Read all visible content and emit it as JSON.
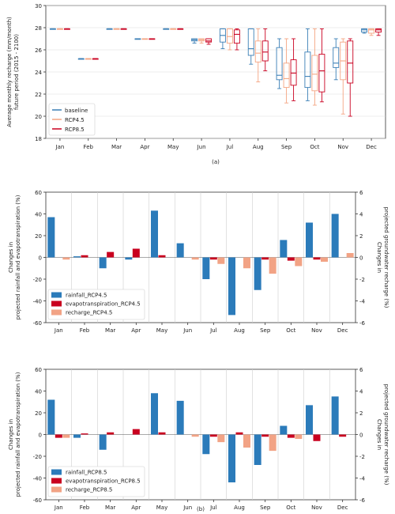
{
  "chart_data": [
    {
      "type": "box",
      "panel_label": "(a)",
      "ylabel_lines": [
        "Average monthly recharge (mm/month)",
        "future period (2015 - 2100)"
      ],
      "ylim": [
        18,
        30
      ],
      "yticks": [
        18,
        20,
        22,
        24,
        26,
        28,
        30
      ],
      "categories": [
        "Jan",
        "Feb",
        "Mar",
        "Apr",
        "May",
        "Jun",
        "Jul",
        "Aug",
        "Sep",
        "Oct",
        "Nov",
        "Dec"
      ],
      "legend_position": "lower-left",
      "series": [
        {
          "name": "baseline",
          "color": "#3b7fb6",
          "boxes": [
            {
              "min": 27.9,
              "q1": 27.9,
              "median": 27.9,
              "q3": 27.9,
              "max": 27.9
            },
            {
              "min": 25.2,
              "q1": 25.2,
              "median": 25.2,
              "q3": 25.2,
              "max": 25.2
            },
            {
              "min": 27.9,
              "q1": 27.9,
              "median": 27.9,
              "q3": 27.9,
              "max": 27.9
            },
            {
              "min": 27.0,
              "q1": 27.0,
              "median": 27.0,
              "q3": 27.0,
              "max": 27.0
            },
            {
              "min": 27.9,
              "q1": 27.9,
              "median": 27.9,
              "q3": 27.9,
              "max": 27.9
            },
            {
              "min": 26.6,
              "q1": 26.8,
              "median": 26.9,
              "q3": 27.0,
              "max": 27.0
            },
            {
              "min": 26.1,
              "q1": 26.7,
              "median": 27.3,
              "q3": 27.9,
              "max": 27.9
            },
            {
              "min": 24.7,
              "q1": 25.5,
              "median": 26.1,
              "q3": 27.9,
              "max": 27.9
            },
            {
              "min": 22.5,
              "q1": 23.3,
              "median": 23.7,
              "q3": 26.2,
              "max": 27.0
            },
            {
              "min": 21.4,
              "q1": 22.6,
              "median": 23.6,
              "q3": 25.8,
              "max": 27.9
            },
            {
              "min": 23.3,
              "q1": 24.4,
              "median": 24.8,
              "q3": 26.2,
              "max": 27.0
            },
            {
              "min": 27.5,
              "q1": 27.6,
              "median": 27.8,
              "q3": 27.9,
              "max": 27.9
            }
          ]
        },
        {
          "name": "RCP4.5",
          "color": "#f4a582",
          "boxes": [
            {
              "min": 27.9,
              "q1": 27.9,
              "median": 27.9,
              "q3": 27.9,
              "max": 27.9
            },
            {
              "min": 25.2,
              "q1": 25.2,
              "median": 25.2,
              "q3": 25.2,
              "max": 25.2
            },
            {
              "min": 27.9,
              "q1": 27.9,
              "median": 27.9,
              "q3": 27.9,
              "max": 27.9
            },
            {
              "min": 27.0,
              "q1": 27.0,
              "median": 27.0,
              "q3": 27.0,
              "max": 27.0
            },
            {
              "min": 27.9,
              "q1": 27.9,
              "median": 27.9,
              "q3": 27.9,
              "max": 27.9
            },
            {
              "min": 26.6,
              "q1": 26.8,
              "median": 26.9,
              "q3": 27.0,
              "max": 27.0
            },
            {
              "min": 26.0,
              "q1": 26.6,
              "median": 27.2,
              "q3": 27.9,
              "max": 27.9
            },
            {
              "min": 23.1,
              "q1": 24.9,
              "median": 25.7,
              "q3": 26.8,
              "max": 27.9
            },
            {
              "min": 21.2,
              "q1": 22.6,
              "median": 23.4,
              "q3": 24.8,
              "max": 27.0
            },
            {
              "min": 21.0,
              "q1": 22.3,
              "median": 23.8,
              "q3": 25.5,
              "max": 27.9
            },
            {
              "min": 20.2,
              "q1": 23.3,
              "median": 25.0,
              "q3": 26.7,
              "max": 27.0
            },
            {
              "min": 27.3,
              "q1": 27.5,
              "median": 27.8,
              "q3": 27.9,
              "max": 27.9
            }
          ]
        },
        {
          "name": "RCP8.5",
          "color": "#ca0020",
          "boxes": [
            {
              "min": 27.9,
              "q1": 27.9,
              "median": 27.9,
              "q3": 27.9,
              "max": 27.9
            },
            {
              "min": 25.2,
              "q1": 25.2,
              "median": 25.2,
              "q3": 25.2,
              "max": 25.2
            },
            {
              "min": 27.9,
              "q1": 27.9,
              "median": 27.9,
              "q3": 27.9,
              "max": 27.9
            },
            {
              "min": 27.0,
              "q1": 27.0,
              "median": 27.0,
              "q3": 27.0,
              "max": 27.0
            },
            {
              "min": 27.9,
              "q1": 27.9,
              "median": 27.9,
              "q3": 27.9,
              "max": 27.9
            },
            {
              "min": 26.5,
              "q1": 26.7,
              "median": 26.8,
              "q3": 27.0,
              "max": 27.0
            },
            {
              "min": 26.0,
              "q1": 26.6,
              "median": 27.4,
              "q3": 27.8,
              "max": 27.9
            },
            {
              "min": 24.1,
              "q1": 25.0,
              "median": 25.8,
              "q3": 26.8,
              "max": 27.9
            },
            {
              "min": 21.4,
              "q1": 22.8,
              "median": 23.9,
              "q3": 25.1,
              "max": 27.0
            },
            {
              "min": 21.3,
              "q1": 22.2,
              "median": 24.1,
              "q3": 25.6,
              "max": 27.9
            },
            {
              "min": 20.0,
              "q1": 23.0,
              "median": 24.8,
              "q3": 26.8,
              "max": 27.0
            },
            {
              "min": 27.3,
              "q1": 27.6,
              "median": 27.8,
              "q3": 27.9,
              "max": 27.9
            }
          ]
        }
      ]
    },
    {
      "type": "bar",
      "scenario": "RCP4.5",
      "ylabel_lines": [
        "Changes in",
        "projected rainfall and evapotranspiration (%)"
      ],
      "y2label_lines": [
        "Changes in",
        "projected groundwater recharge (%)"
      ],
      "ylim": [
        -60,
        60
      ],
      "yticks": [
        -60,
        -40,
        -20,
        0,
        20,
        40,
        60
      ],
      "y2lim": [
        -6,
        6
      ],
      "y2ticks": [
        -6,
        -4,
        -2,
        0,
        2,
        4,
        6
      ],
      "categories": [
        "Jan",
        "Feb",
        "Mar",
        "Apr",
        "May",
        "Jun",
        "Jul",
        "Aug",
        "Sep",
        "Oct",
        "Nov",
        "Dec"
      ],
      "legend_position": "lower-left",
      "series": [
        {
          "name": "rainfall_RCP4.5",
          "axis": "left",
          "color": "#2b7bba",
          "values": [
            37,
            1,
            -10,
            -2,
            43,
            13,
            -20,
            -53,
            -30,
            16,
            32,
            40
          ]
        },
        {
          "name": "evapotranspiration_RCP4.5",
          "axis": "left",
          "color": "#c9001f",
          "values": [
            0,
            2,
            5,
            8,
            2,
            0,
            -2,
            0,
            -2,
            -3,
            -2,
            0
          ]
        },
        {
          "name": "recharge_RCP4.5",
          "axis": "right",
          "color": "#f2a385",
          "values": [
            -0.2,
            0,
            0,
            0,
            0,
            -0.2,
            -0.6,
            -1.0,
            -1.5,
            -0.8,
            -0.4,
            0.4
          ]
        }
      ]
    },
    {
      "type": "bar",
      "scenario": "RCP8.5",
      "panel_label": "(b)",
      "ylabel_lines": [
        "Changes in",
        "projected rainfall and evapotranspiration (%)"
      ],
      "y2label_lines": [
        "Changes in",
        "projected groundwater recharge (%)"
      ],
      "ylim": [
        -60,
        60
      ],
      "yticks": [
        -60,
        -40,
        -20,
        0,
        20,
        40,
        60
      ],
      "y2lim": [
        -6,
        6
      ],
      "y2ticks": [
        -6,
        -4,
        -2,
        0,
        2,
        4,
        6
      ],
      "categories": [
        "Jan",
        "Feb",
        "Mar",
        "Apr",
        "May",
        "Jun",
        "Jul",
        "Aug",
        "Sep",
        "Oct",
        "Nov",
        "Dec"
      ],
      "legend_position": "lower-left",
      "series": [
        {
          "name": "rainfall_RCP8.5",
          "axis": "left",
          "color": "#2b7bba",
          "values": [
            32,
            -3,
            -14,
            0,
            38,
            31,
            -18,
            -44,
            -28,
            8,
            27,
            35
          ]
        },
        {
          "name": "evapotranspiration_RCP8.5",
          "axis": "left",
          "color": "#c9001f",
          "values": [
            -3,
            1,
            2,
            5,
            2,
            0,
            -2,
            2,
            -2,
            -3,
            -6,
            -2
          ]
        },
        {
          "name": "recharge_RCP8.5",
          "axis": "right",
          "color": "#f2a385",
          "values": [
            -0.3,
            0,
            0,
            0,
            0,
            -0.2,
            -0.7,
            -1.2,
            -1.5,
            -0.4,
            0,
            0
          ]
        }
      ]
    }
  ]
}
